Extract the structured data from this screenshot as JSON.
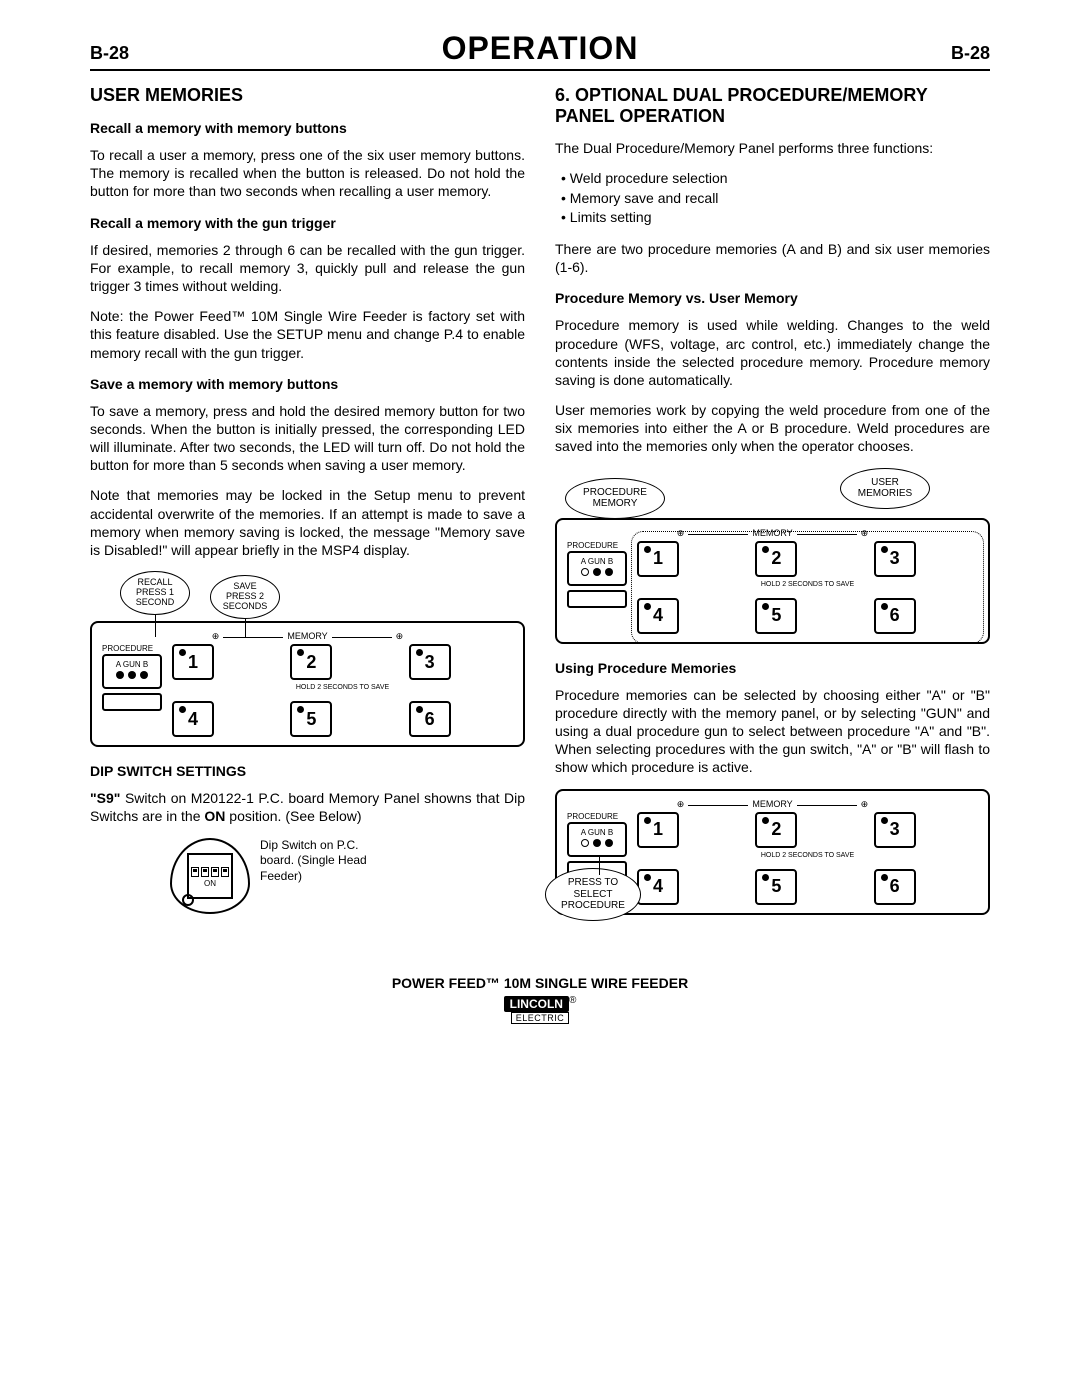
{
  "header": {
    "left_code": "B-28",
    "title": "OPERATION",
    "right_code": "B-28"
  },
  "left_col": {
    "h2": "USER MEMORIES",
    "s1_title": "Recall a memory with memory buttons",
    "s1_p": "To recall a user a memory, press one of the six user memory buttons. The memory is recalled when the button is released. Do not hold the button for more than two seconds when recalling a user memory.",
    "s2_title": "Recall a memory with the gun trigger",
    "s2_p1": "If desired, memories 2 through 6 can be recalled with the gun trigger. For example, to recall memory 3, quickly pull and release the gun trigger 3 times without welding.",
    "s2_p2": "Note: the Power Feed™ 10M Single Wire Feeder is factory set with this feature disabled. Use the SETUP menu and change P.4 to enable memory recall with the gun trigger.",
    "s3_title": "Save a memory with memory buttons",
    "s3_p1": "To save a memory, press and hold the desired memory button for two seconds. When the button is initially pressed, the corresponding LED will illuminate. After two seconds, the LED will turn off. Do not hold the button for more than 5 seconds when saving a user memory.",
    "s3_p2": "Note that memories may be locked in the Setup menu to prevent accidental overwrite of the memories. If an attempt is made to save a memory when memory saving is locked, the message \"Memory save is Disabled!\" will appear briefly in the MSP4 display.",
    "callout_recall": "RECALL\nPRESS 1\nSECOND",
    "callout_save": "SAVE\nPRESS 2\nSECONDS",
    "panel_memory_label": "MEMORY",
    "panel_procedure_label": "PROCEDURE",
    "panel_agb": "A   GUN   B",
    "panel_hold_caption": "HOLD 2 SECONDS TO SAVE",
    "mem_buttons": [
      "1",
      "2",
      "3",
      "4",
      "5",
      "6"
    ],
    "dip_title": "DIP SWITCH SETTINGS",
    "dip_p_prefix": "\"S9\"",
    "dip_p_mid": " Switch on M20122-1 P.C. board Memory Panel showns that Dip Switchs are in the ",
    "dip_p_on": "ON",
    "dip_p_suffix": " position. (See Below)",
    "dip_on_label": "ON",
    "dip_caption": "Dip Switch on P.C. board. (Single Head Feeder)"
  },
  "right_col": {
    "h2": "6. OPTIONAL DUAL PROCEDURE/MEMORY PANEL OPERATION",
    "intro": "The Dual Procedure/Memory Panel performs three functions:",
    "bullets": [
      "Weld procedure selection",
      "Memory save and recall",
      "Limits setting"
    ],
    "after_bullets": "There are two procedure memories (A and B) and six user memories (1-6).",
    "s1_title": "Procedure Memory vs. User Memory",
    "s1_p1": "Procedure memory is used while welding. Changes to the weld procedure (WFS, voltage, arc control, etc.) immediately change the contents inside the selected procedure memory. Procedure memory saving is done automatically.",
    "s1_p2": "User memories work by copying the weld procedure from one of the six memories into either the A or B procedure. Weld procedures are saved into the memories only when the operator chooses.",
    "callout_proc_mem": "PROCEDURE\nMEMORY",
    "callout_user_mem": "USER\nMEMORIES",
    "s2_title": "Using Procedure Memories",
    "s2_p": "Procedure memories can be selected by choosing either \"A\" or  \"B\" procedure directly with the memory panel, or by selecting \"GUN\" and using a dual procedure gun to select between procedure \"A\" and \"B\". When selecting procedures with the gun switch, \"A\" or \"B\" will flash to show which procedure is active.",
    "callout_press_select": "PRESS TO\nSELECT\nPROCEDURE"
  },
  "footer": {
    "product": "POWER FEED™ 10M SINGLE WIRE FEEDER",
    "brand": "LINCOLN",
    "brand_sub": "ELECTRIC",
    "reg": "®"
  },
  "colors": {
    "text": "#000000",
    "bg": "#ffffff"
  }
}
